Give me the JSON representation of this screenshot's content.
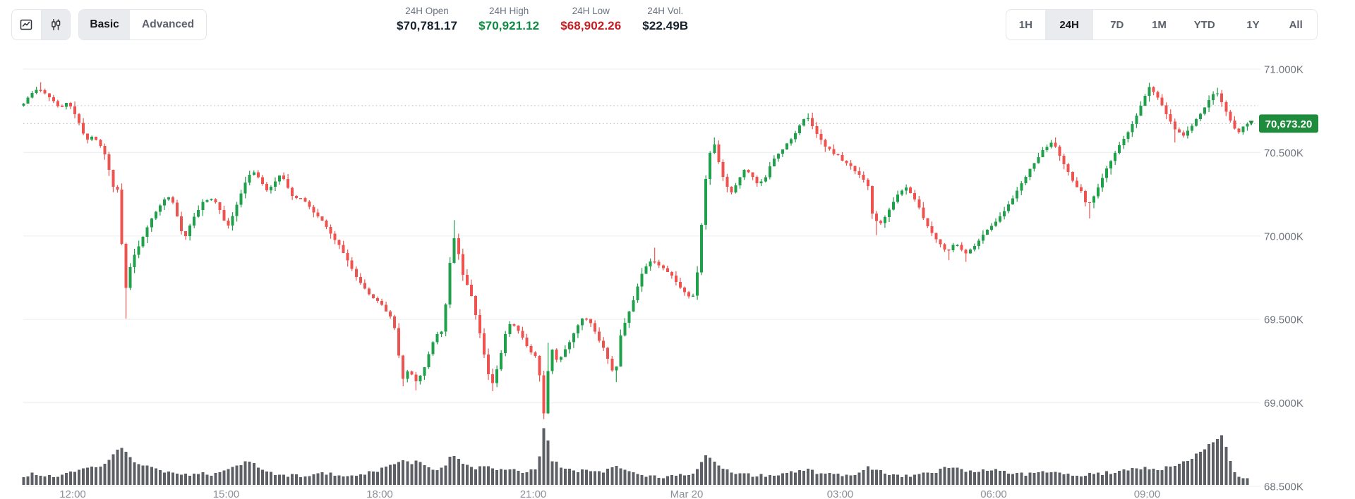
{
  "header": {
    "chart_type_toggle": {
      "options": [
        {
          "id": "line",
          "icon": "line-chart-icon",
          "active": false
        },
        {
          "id": "candlestick",
          "icon": "candlestick-icon",
          "active": true
        }
      ]
    },
    "mode_toggle": {
      "options": [
        "Basic",
        "Advanced"
      ],
      "active": "Basic"
    },
    "stats": [
      {
        "label": "24H Open",
        "value": "$70,781.17",
        "color": "#15212d"
      },
      {
        "label": "24H High",
        "value": "$70,921.12",
        "color": "#0e8a43"
      },
      {
        "label": "24H Low",
        "value": "$68,902.26",
        "color": "#c41e25"
      },
      {
        "label": "24H Vol.",
        "value": "$22.49B",
        "color": "#15212d"
      }
    ],
    "ranges": {
      "options": [
        "1H",
        "24H",
        "7D",
        "1M",
        "YTD",
        "1Y",
        "All"
      ],
      "active": "24H",
      "widths": [
        55,
        69,
        67,
        53,
        76,
        62,
        60
      ]
    }
  },
  "colors": {
    "candle_up": "#1fa04a",
    "candle_down": "#ef5350",
    "volume_bar": "#5c6066",
    "grid_line": "#eef0f3",
    "dotted_line": "#bfc3ca",
    "y_label": "#6f747e",
    "x_label": "#8b909a",
    "badge_bg": "#1e8b3d",
    "badge_text": "#ffffff",
    "icon_stroke": "#2c3138"
  },
  "chart_data": {
    "type": "candlestick+volume",
    "interval_minutes": 5,
    "candle_count": 288,
    "time_span": "24H",
    "grid": true,
    "legend": "none",
    "y_axis": {
      "side": "right",
      "labels": [
        {
          "price": 71000,
          "label": "71.000K"
        },
        {
          "price": 70500,
          "label": "70.500K"
        },
        {
          "price": 70000,
          "label": "70.000K"
        },
        {
          "price": 69500,
          "label": "69.500K"
        },
        {
          "price": 69000,
          "label": "69.000K"
        },
        {
          "price": 68500,
          "label": "68.500K"
        }
      ],
      "range": [
        68500,
        71000
      ]
    },
    "x_ticks": [
      {
        "t": 60,
        "label": "12:00"
      },
      {
        "t": 240,
        "label": "15:00"
      },
      {
        "t": 420,
        "label": "18:00"
      },
      {
        "t": 600,
        "label": "21:00"
      },
      {
        "t": 780,
        "label": "Mar 20"
      },
      {
        "t": 960,
        "label": "03:00"
      },
      {
        "t": 1140,
        "label": "06:00"
      },
      {
        "t": 1320,
        "label": "09:00"
      }
    ],
    "stats": {
      "open": 70781.17,
      "high": 70921.12,
      "low": 68902.26,
      "volume": "$22.49B"
    },
    "current_price": {
      "value": 70673.2,
      "label": "70,673.20"
    },
    "open_price_line": 70781.17,
    "render_seed": 20240320,
    "price_anchors": [
      [
        0,
        70781
      ],
      [
        8,
        70830
      ],
      [
        20,
        70885
      ],
      [
        32,
        70840
      ],
      [
        45,
        70770
      ],
      [
        55,
        70800
      ],
      [
        62,
        70740
      ],
      [
        70,
        70640
      ],
      [
        78,
        70570
      ],
      [
        85,
        70600
      ],
      [
        92,
        70545
      ],
      [
        100,
        70460
      ],
      [
        106,
        70300
      ],
      [
        110,
        70285
      ],
      [
        114,
        70280
      ],
      [
        118,
        69900
      ],
      [
        122,
        69680
      ],
      [
        128,
        69830
      ],
      [
        135,
        69910
      ],
      [
        142,
        69990
      ],
      [
        150,
        70080
      ],
      [
        160,
        70160
      ],
      [
        170,
        70240
      ],
      [
        180,
        70190
      ],
      [
        185,
        70040
      ],
      [
        192,
        69995
      ],
      [
        200,
        70090
      ],
      [
        212,
        70200
      ],
      [
        222,
        70230
      ],
      [
        230,
        70180
      ],
      [
        238,
        70090
      ],
      [
        242,
        70060
      ],
      [
        250,
        70150
      ],
      [
        258,
        70260
      ],
      [
        266,
        70360
      ],
      [
        272,
        70390
      ],
      [
        280,
        70330
      ],
      [
        288,
        70270
      ],
      [
        296,
        70320
      ],
      [
        304,
        70370
      ],
      [
        312,
        70300
      ],
      [
        320,
        70220
      ],
      [
        330,
        70230
      ],
      [
        340,
        70150
      ],
      [
        352,
        70090
      ],
      [
        365,
        70000
      ],
      [
        378,
        69900
      ],
      [
        390,
        69780
      ],
      [
        400,
        69700
      ],
      [
        410,
        69640
      ],
      [
        425,
        69570
      ],
      [
        436,
        69500
      ],
      [
        442,
        69300
      ],
      [
        447,
        69140
      ],
      [
        455,
        69200
      ],
      [
        462,
        69120
      ],
      [
        470,
        69180
      ],
      [
        478,
        69300
      ],
      [
        486,
        69400
      ],
      [
        494,
        69440
      ],
      [
        500,
        69700
      ],
      [
        506,
        70020
      ],
      [
        512,
        69900
      ],
      [
        518,
        69750
      ],
      [
        528,
        69640
      ],
      [
        538,
        69400
      ],
      [
        546,
        69200
      ],
      [
        552,
        69110
      ],
      [
        560,
        69250
      ],
      [
        568,
        69420
      ],
      [
        574,
        69490
      ],
      [
        582,
        69440
      ],
      [
        590,
        69360
      ],
      [
        598,
        69300
      ],
      [
        606,
        69260
      ],
      [
        612,
        68905
      ],
      [
        617,
        69180
      ],
      [
        623,
        69330
      ],
      [
        629,
        69240
      ],
      [
        636,
        69300
      ],
      [
        644,
        69380
      ],
      [
        652,
        69460
      ],
      [
        660,
        69520
      ],
      [
        668,
        69470
      ],
      [
        676,
        69390
      ],
      [
        684,
        69310
      ],
      [
        690,
        69230
      ],
      [
        696,
        69160
      ],
      [
        703,
        69420
      ],
      [
        710,
        69510
      ],
      [
        718,
        69620
      ],
      [
        726,
        69760
      ],
      [
        734,
        69830
      ],
      [
        740,
        69860
      ],
      [
        748,
        69820
      ],
      [
        756,
        69800
      ],
      [
        764,
        69750
      ],
      [
        772,
        69690
      ],
      [
        780,
        69650
      ],
      [
        788,
        69635
      ],
      [
        794,
        69830
      ],
      [
        800,
        70240
      ],
      [
        806,
        70480
      ],
      [
        812,
        70560
      ],
      [
        818,
        70430
      ],
      [
        824,
        70330
      ],
      [
        832,
        70250
      ],
      [
        840,
        70320
      ],
      [
        848,
        70400
      ],
      [
        856,
        70360
      ],
      [
        864,
        70300
      ],
      [
        872,
        70350
      ],
      [
        880,
        70440
      ],
      [
        888,
        70500
      ],
      [
        896,
        70540
      ],
      [
        904,
        70590
      ],
      [
        912,
        70660
      ],
      [
        920,
        70720
      ],
      [
        928,
        70660
      ],
      [
        936,
        70580
      ],
      [
        944,
        70530
      ],
      [
        952,
        70500
      ],
      [
        960,
        70470
      ],
      [
        968,
        70430
      ],
      [
        976,
        70400
      ],
      [
        984,
        70360
      ],
      [
        992,
        70310
      ],
      [
        998,
        70120
      ],
      [
        1006,
        70060
      ],
      [
        1014,
        70120
      ],
      [
        1022,
        70200
      ],
      [
        1030,
        70260
      ],
      [
        1038,
        70290
      ],
      [
        1046,
        70240
      ],
      [
        1054,
        70150
      ],
      [
        1062,
        70060
      ],
      [
        1070,
        69990
      ],
      [
        1078,
        69945
      ],
      [
        1086,
        69905
      ],
      [
        1094,
        69960
      ],
      [
        1100,
        69925
      ],
      [
        1108,
        69890
      ],
      [
        1116,
        69935
      ],
      [
        1124,
        69985
      ],
      [
        1132,
        70030
      ],
      [
        1140,
        70070
      ],
      [
        1148,
        70120
      ],
      [
        1156,
        70180
      ],
      [
        1164,
        70240
      ],
      [
        1172,
        70310
      ],
      [
        1180,
        70380
      ],
      [
        1188,
        70440
      ],
      [
        1196,
        70500
      ],
      [
        1204,
        70545
      ],
      [
        1210,
        70570
      ],
      [
        1218,
        70480
      ],
      [
        1226,
        70390
      ],
      [
        1234,
        70320
      ],
      [
        1242,
        70270
      ],
      [
        1250,
        70180
      ],
      [
        1258,
        70240
      ],
      [
        1266,
        70330
      ],
      [
        1274,
        70420
      ],
      [
        1282,
        70500
      ],
      [
        1290,
        70560
      ],
      [
        1298,
        70620
      ],
      [
        1306,
        70700
      ],
      [
        1314,
        70800
      ],
      [
        1322,
        70890
      ],
      [
        1330,
        70850
      ],
      [
        1338,
        70780
      ],
      [
        1346,
        70700
      ],
      [
        1354,
        70630
      ],
      [
        1362,
        70600
      ],
      [
        1370,
        70640
      ],
      [
        1378,
        70700
      ],
      [
        1386,
        70760
      ],
      [
        1394,
        70830
      ],
      [
        1402,
        70860
      ],
      [
        1410,
        70780
      ],
      [
        1418,
        70680
      ],
      [
        1426,
        70620
      ],
      [
        1434,
        70660
      ],
      [
        1440,
        70673.2
      ]
    ],
    "wick_overrides": [
      [
        22,
        "high",
        70921.12
      ],
      [
        120,
        "low",
        69505
      ],
      [
        447,
        "low",
        69100
      ],
      [
        462,
        "low",
        69075
      ],
      [
        506,
        "high",
        70095
      ],
      [
        552,
        "low",
        69070
      ],
      [
        612,
        "low",
        68902.26
      ],
      [
        617,
        "high",
        69360
      ],
      [
        696,
        "low",
        69125
      ],
      [
        740,
        "high",
        69930
      ],
      [
        812,
        "high",
        70590
      ],
      [
        920,
        "high",
        70735
      ],
      [
        1000,
        "low",
        70005
      ],
      [
        1086,
        "low",
        69855
      ],
      [
        1108,
        "low",
        69845
      ],
      [
        1210,
        "high",
        70590
      ],
      [
        1250,
        "low",
        70105
      ],
      [
        1322,
        "high",
        70918
      ],
      [
        1354,
        "low",
        70560
      ],
      [
        1402,
        "high",
        70888
      ]
    ],
    "volume_anchors": [
      [
        0,
        12
      ],
      [
        15,
        16
      ],
      [
        30,
        13
      ],
      [
        45,
        12
      ],
      [
        60,
        18
      ],
      [
        75,
        22
      ],
      [
        90,
        26
      ],
      [
        100,
        34
      ],
      [
        108,
        44
      ],
      [
        115,
        56
      ],
      [
        122,
        48
      ],
      [
        130,
        36
      ],
      [
        140,
        28
      ],
      [
        152,
        24
      ],
      [
        165,
        19
      ],
      [
        180,
        16
      ],
      [
        195,
        14
      ],
      [
        210,
        17
      ],
      [
        225,
        15
      ],
      [
        240,
        19
      ],
      [
        252,
        26
      ],
      [
        262,
        34
      ],
      [
        272,
        30
      ],
      [
        282,
        24
      ],
      [
        295,
        17
      ],
      [
        310,
        14
      ],
      [
        325,
        13
      ],
      [
        340,
        15
      ],
      [
        358,
        16
      ],
      [
        375,
        14
      ],
      [
        395,
        15
      ],
      [
        410,
        18
      ],
      [
        422,
        22
      ],
      [
        434,
        28
      ],
      [
        446,
        36
      ],
      [
        456,
        30
      ],
      [
        466,
        34
      ],
      [
        478,
        26
      ],
      [
        488,
        21
      ],
      [
        497,
        28
      ],
      [
        504,
        44
      ],
      [
        510,
        40
      ],
      [
        518,
        30
      ],
      [
        530,
        22
      ],
      [
        542,
        28
      ],
      [
        552,
        24
      ],
      [
        562,
        20
      ],
      [
        572,
        24
      ],
      [
        584,
        18
      ],
      [
        596,
        20
      ],
      [
        606,
        24
      ],
      [
        612,
        85
      ],
      [
        616,
        69
      ],
      [
        622,
        36
      ],
      [
        630,
        28
      ],
      [
        640,
        23
      ],
      [
        652,
        20
      ],
      [
        662,
        22
      ],
      [
        674,
        18
      ],
      [
        686,
        20
      ],
      [
        696,
        27
      ],
      [
        706,
        24
      ],
      [
        716,
        18
      ],
      [
        728,
        14
      ],
      [
        740,
        13
      ],
      [
        752,
        11
      ],
      [
        764,
        12
      ],
      [
        776,
        14
      ],
      [
        788,
        16
      ],
      [
        796,
        30
      ],
      [
        804,
        42
      ],
      [
        812,
        32
      ],
      [
        822,
        24
      ],
      [
        834,
        18
      ],
      [
        846,
        16
      ],
      [
        858,
        14
      ],
      [
        870,
        13
      ],
      [
        884,
        15
      ],
      [
        898,
        16
      ],
      [
        910,
        20
      ],
      [
        920,
        22
      ],
      [
        932,
        18
      ],
      [
        944,
        15
      ],
      [
        956,
        14
      ],
      [
        968,
        13
      ],
      [
        980,
        14
      ],
      [
        992,
        26
      ],
      [
        1000,
        23
      ],
      [
        1010,
        18
      ],
      [
        1022,
        15
      ],
      [
        1034,
        13
      ],
      [
        1046,
        14
      ],
      [
        1058,
        16
      ],
      [
        1070,
        18
      ],
      [
        1082,
        24
      ],
      [
        1090,
        27
      ],
      [
        1098,
        23
      ],
      [
        1108,
        19
      ],
      [
        1118,
        17
      ],
      [
        1128,
        20
      ],
      [
        1140,
        24
      ],
      [
        1152,
        20
      ],
      [
        1164,
        17
      ],
      [
        1176,
        15
      ],
      [
        1188,
        17
      ],
      [
        1200,
        19
      ],
      [
        1212,
        16
      ],
      [
        1224,
        14
      ],
      [
        1236,
        13
      ],
      [
        1248,
        15
      ],
      [
        1260,
        15
      ],
      [
        1272,
        17
      ],
      [
        1284,
        19
      ],
      [
        1296,
        21
      ],
      [
        1308,
        23
      ],
      [
        1320,
        25
      ],
      [
        1330,
        21
      ],
      [
        1342,
        24
      ],
      [
        1354,
        29
      ],
      [
        1366,
        34
      ],
      [
        1376,
        42
      ],
      [
        1386,
        51
      ],
      [
        1394,
        59
      ],
      [
        1401,
        65
      ],
      [
        1407,
        70
      ],
      [
        1413,
        55
      ],
      [
        1419,
        24
      ],
      [
        1425,
        14
      ],
      [
        1431,
        12
      ],
      [
        1437,
        10
      ]
    ]
  }
}
